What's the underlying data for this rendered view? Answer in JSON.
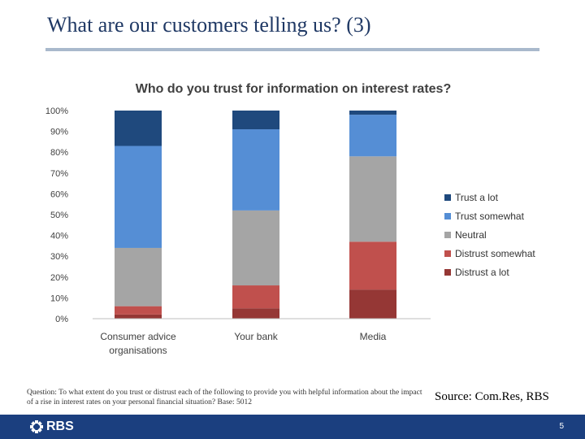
{
  "slide": {
    "title": "What are our customers telling us? (3)",
    "question": "Question: To what extent do you trust or distrust each of the following to provide you with helpful information about the impact of a rise in interest rates on your personal financial situation? Base: 5012",
    "source": "Source: Com.Res, RBS",
    "page_number": "5",
    "logo_text": "RBS"
  },
  "chart_data": {
    "type": "bar",
    "stacked": true,
    "title": "Who do you trust for information on interest rates?",
    "categories": [
      "Consumer advice organisations",
      "Your bank",
      "Media"
    ],
    "category_lines": [
      [
        "Consumer advice",
        "organisations"
      ],
      [
        "Your bank"
      ],
      [
        "Media"
      ]
    ],
    "y_ticks": [
      "0%",
      "10%",
      "20%",
      "30%",
      "40%",
      "50%",
      "60%",
      "70%",
      "80%",
      "90%",
      "100%"
    ],
    "ylim": [
      0,
      100
    ],
    "legend_position": "right",
    "series": [
      {
        "name": "Distrust a lot",
        "color": "#953735",
        "values": [
          2,
          5,
          14
        ]
      },
      {
        "name": "Distrust somewhat",
        "color": "#c0504d",
        "values": [
          4,
          11,
          23
        ]
      },
      {
        "name": "Neutral",
        "color": "#a5a5a5",
        "values": [
          28,
          36,
          41
        ]
      },
      {
        "name": "Trust somewhat",
        "color": "#558ed5",
        "values": [
          49,
          39,
          20
        ]
      },
      {
        "name": "Trust a lot",
        "color": "#1f497d",
        "values": [
          17,
          9,
          2
        ]
      }
    ]
  }
}
